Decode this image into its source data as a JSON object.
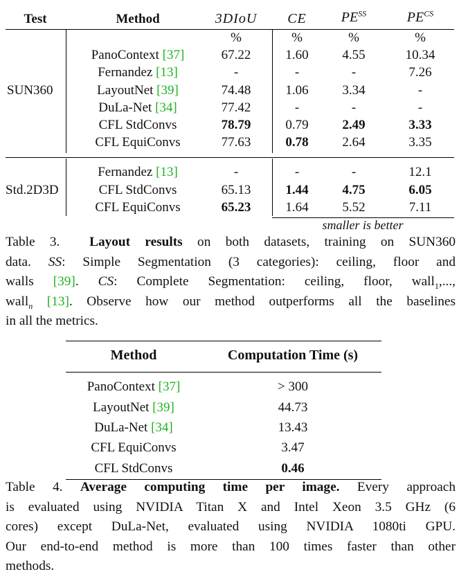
{
  "table3": {
    "headers": {
      "test": "Test",
      "method": "Method",
      "col1": "3DIoU",
      "col2": "CE",
      "col3_base": "PE",
      "col3_sup": "SS",
      "col4_base": "PE",
      "col4_sup": "CS",
      "unit": "%"
    },
    "groups": [
      {
        "test": "SUN360",
        "rows": [
          {
            "method": "PanoContext",
            "cite": "[37]",
            "v": [
              "67.22",
              "1.60",
              "4.55",
              "10.34"
            ]
          },
          {
            "method": "Fernandez",
            "cite": "[13]",
            "v": [
              "-",
              "-",
              "-",
              "7.26"
            ]
          },
          {
            "method": "LayoutNet",
            "cite": "[39]",
            "v": [
              "74.48",
              "1.06",
              "3.34",
              "-"
            ]
          },
          {
            "method": "DuLa-Net",
            "cite": "[34]",
            "v": [
              "77.42",
              "-",
              "-",
              "-"
            ]
          },
          {
            "method": "CFL StdConvs",
            "cite": "",
            "v": [
              "78.79",
              "0.79",
              "2.49",
              "3.33"
            ]
          },
          {
            "method": "CFL EquiConvs",
            "cite": "",
            "v": [
              "77.63",
              "0.78",
              "2.64",
              "3.35"
            ]
          }
        ]
      },
      {
        "test": "Std.2D3D",
        "rows": [
          {
            "method": "Fernandez",
            "cite": "[13]",
            "v": [
              "-",
              "-",
              "-",
              "12.1"
            ]
          },
          {
            "method": "CFL StdConvs",
            "cite": "",
            "v": [
              "65.13",
              "1.44",
              "4.75",
              "6.05"
            ]
          },
          {
            "method": "CFL EquiConvs",
            "cite": "",
            "v": [
              "65.23",
              "1.64",
              "5.52",
              "7.11"
            ]
          }
        ]
      }
    ],
    "note": "smaller is better",
    "caption": {
      "l1_label": "Table 3.",
      "l1_bold": "Layout results",
      "l1_rest": " on both datasets, training on SUN360",
      "l2_a": "data. ",
      "l2_ss": "SS",
      "l2_b": ": Simple Segmentation (3 categories): ceiling, floor and",
      "l3_a": "walls ",
      "l3_cite": "[39]",
      "l3_b": ". ",
      "l3_cs": "CS",
      "l3_c": ": Complete Segmentation: ceiling, floor, wall",
      "l3_sub": "1",
      "l3_d": ",...,",
      "l4_a": "wall",
      "l4_sub": "n",
      "l4_b": " ",
      "l4_cite": "[13]",
      "l4_c": ". Observe how our method outperforms all the baselines",
      "l5": "in all the metrics."
    }
  },
  "table4": {
    "headers": {
      "method": "Method",
      "time": "Computation Time (s)"
    },
    "rows": [
      {
        "method": "PanoContext",
        "cite": "[37]",
        "time": "> 300"
      },
      {
        "method": "LayoutNet",
        "cite": "[39]",
        "time": "44.73"
      },
      {
        "method": "DuLa-Net",
        "cite": "[34]",
        "time": "13.43"
      },
      {
        "method": "CFL EquiConvs",
        "cite": "",
        "time": "3.47"
      },
      {
        "method": "CFL StdConvs",
        "cite": "",
        "time": "0.46"
      }
    ],
    "caption": {
      "l1_label": "Table 4.",
      "l1_bold": "Average computing time per image.",
      "l1_rest": " Every approach",
      "l2": "is evaluated using NVIDIA Titan X and Intel Xeon 3.5 GHz (6",
      "l3": "cores) except DuLa-Net, evaluated using NVIDIA 1080ti GPU.",
      "l4": "Our end-to-end method is more than 100 times faster than other",
      "l5": "methods."
    }
  },
  "colors": {
    "cite": "#1db41d",
    "text": "#111111"
  }
}
